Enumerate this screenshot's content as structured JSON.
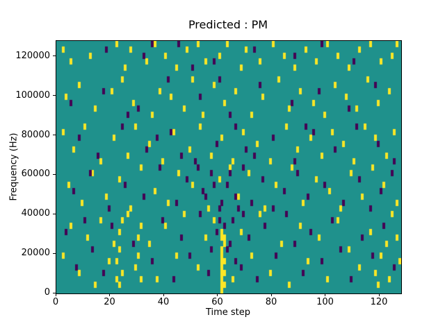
{
  "figure": {
    "background": "#ffffff"
  },
  "chart_data": {
    "type": "heatmap",
    "title": "Predicted : PM",
    "xlabel": "Time step",
    "ylabel": "Frequency (Hz)",
    "xlim": [
      0,
      128
    ],
    "ylim": [
      0,
      128000
    ],
    "x_ticks": [
      0,
      20,
      40,
      60,
      80,
      100,
      120
    ],
    "y_ticks": [
      0,
      20000,
      40000,
      60000,
      80000,
      100000,
      120000
    ],
    "grid": {
      "cols": 128,
      "rows": 43
    },
    "colormap": "viridis",
    "colors": {
      "background_value": "#1f918c",
      "high_value": "#fde725",
      "low_value": "#440154",
      "axes": "#000000"
    },
    "legend": "none",
    "cells": {
      "yellow": [
        [
          2,
          41
        ],
        [
          5,
          39
        ],
        [
          12,
          40
        ],
        [
          22,
          42
        ],
        [
          25,
          38
        ],
        [
          27,
          41
        ],
        [
          33,
          39
        ],
        [
          36,
          42
        ],
        [
          40,
          40
        ],
        [
          44,
          38
        ],
        [
          48,
          41
        ],
        [
          52,
          42
        ],
        [
          55,
          39
        ],
        [
          60,
          40
        ],
        [
          63,
          42
        ],
        [
          68,
          38
        ],
        [
          70,
          41
        ],
        [
          75,
          39
        ],
        [
          80,
          42
        ],
        [
          84,
          40
        ],
        [
          88,
          38
        ],
        [
          92,
          41
        ],
        [
          96,
          39
        ],
        [
          100,
          42
        ],
        [
          104,
          40
        ],
        [
          108,
          38
        ],
        [
          112,
          41
        ],
        [
          116,
          42
        ],
        [
          120,
          39
        ],
        [
          124,
          40
        ],
        [
          126,
          42
        ],
        [
          3,
          33
        ],
        [
          8,
          35
        ],
        [
          14,
          31
        ],
        [
          20,
          34
        ],
        [
          24,
          36
        ],
        [
          28,
          32
        ],
        [
          35,
          30
        ],
        [
          38,
          34
        ],
        [
          42,
          33
        ],
        [
          47,
          31
        ],
        [
          50,
          36
        ],
        [
          54,
          30
        ],
        [
          58,
          35
        ],
        [
          62,
          32
        ],
        [
          66,
          34
        ],
        [
          72,
          30
        ],
        [
          76,
          33
        ],
        [
          82,
          36
        ],
        [
          86,
          31
        ],
        [
          90,
          34
        ],
        [
          95,
          32
        ],
        [
          99,
          30
        ],
        [
          103,
          35
        ],
        [
          107,
          33
        ],
        [
          111,
          31
        ],
        [
          115,
          36
        ],
        [
          119,
          32
        ],
        [
          123,
          34
        ],
        [
          2,
          27
        ],
        [
          6,
          24
        ],
        [
          10,
          28
        ],
        [
          16,
          22
        ],
        [
          21,
          26
        ],
        [
          26,
          23
        ],
        [
          29,
          28
        ],
        [
          34,
          25
        ],
        [
          39,
          22
        ],
        [
          43,
          27
        ],
        [
          49,
          24
        ],
        [
          53,
          28
        ],
        [
          57,
          23
        ],
        [
          61,
          26
        ],
        [
          65,
          22
        ],
        [
          69,
          27
        ],
        [
          74,
          25
        ],
        [
          79,
          22
        ],
        [
          85,
          28
        ],
        [
          89,
          24
        ],
        [
          94,
          26
        ],
        [
          98,
          23
        ],
        [
          102,
          27
        ],
        [
          106,
          25
        ],
        [
          110,
          22
        ],
        [
          114,
          28
        ],
        [
          118,
          26
        ],
        [
          122,
          23
        ],
        [
          125,
          27
        ],
        [
          4,
          18
        ],
        [
          9,
          15
        ],
        [
          13,
          20
        ],
        [
          18,
          16
        ],
        [
          23,
          19
        ],
        [
          27,
          14
        ],
        [
          31,
          21
        ],
        [
          36,
          17
        ],
        [
          41,
          15
        ],
        [
          45,
          20
        ],
        [
          50,
          18
        ],
        [
          56,
          14
        ],
        [
          60,
          19
        ],
        [
          64,
          21
        ],
        [
          67,
          16
        ],
        [
          71,
          20
        ],
        [
          77,
          14
        ],
        [
          81,
          18
        ],
        [
          87,
          21
        ],
        [
          91,
          15
        ],
        [
          96,
          19
        ],
        [
          101,
          17
        ],
        [
          105,
          14
        ],
        [
          109,
          20
        ],
        [
          113,
          16
        ],
        [
          117,
          21
        ],
        [
          121,
          18
        ],
        [
          126,
          15
        ],
        [
          22,
          2
        ],
        [
          22,
          5
        ],
        [
          23,
          1
        ],
        [
          23,
          7
        ],
        [
          23,
          10
        ],
        [
          24,
          3
        ],
        [
          24,
          12
        ],
        [
          21,
          8
        ],
        [
          29,
          4
        ],
        [
          30,
          6
        ],
        [
          30,
          9
        ],
        [
          31,
          2
        ],
        [
          31,
          11
        ],
        [
          61,
          0
        ],
        [
          61,
          1
        ],
        [
          61,
          2
        ],
        [
          61,
          3
        ],
        [
          61,
          4
        ],
        [
          61,
          5
        ],
        [
          61,
          6
        ],
        [
          61,
          7
        ],
        [
          61,
          9
        ],
        [
          61,
          10
        ],
        [
          62,
          1
        ],
        [
          62,
          3
        ],
        [
          62,
          5
        ],
        [
          62,
          8
        ],
        [
          62,
          9
        ],
        [
          2,
          6
        ],
        [
          5,
          11
        ],
        [
          8,
          3
        ],
        [
          11,
          9
        ],
        [
          14,
          1
        ],
        [
          16,
          12
        ],
        [
          19,
          5
        ],
        [
          26,
          13
        ],
        [
          34,
          8
        ],
        [
          37,
          2
        ],
        [
          40,
          11
        ],
        [
          44,
          6
        ],
        [
          47,
          13
        ],
        [
          52,
          4
        ],
        [
          55,
          9
        ],
        [
          58,
          12
        ],
        [
          65,
          2
        ],
        [
          68,
          10
        ],
        [
          72,
          6
        ],
        [
          75,
          13
        ],
        [
          79,
          3
        ],
        [
          83,
          8
        ],
        [
          86,
          1
        ],
        [
          90,
          11
        ],
        [
          93,
          5
        ],
        [
          97,
          9
        ],
        [
          100,
          2
        ],
        [
          104,
          12
        ],
        [
          108,
          7
        ],
        [
          112,
          4
        ],
        [
          116,
          10
        ],
        [
          119,
          1
        ],
        [
          122,
          8
        ],
        [
          124,
          13
        ],
        [
          127,
          5
        ],
        [
          118,
          3
        ],
        [
          120,
          6
        ],
        [
          123,
          2
        ],
        [
          126,
          9
        ]
      ],
      "purple": [
        [
          18,
          41
        ],
        [
          32,
          40
        ],
        [
          45,
          42
        ],
        [
          58,
          39
        ],
        [
          73,
          41
        ],
        [
          88,
          40
        ],
        [
          98,
          42
        ],
        [
          110,
          39
        ],
        [
          35,
          42
        ],
        [
          50,
          38
        ],
        [
          5,
          32
        ],
        [
          17,
          34
        ],
        [
          30,
          31
        ],
        [
          41,
          36
        ],
        [
          53,
          33
        ],
        [
          64,
          30
        ],
        [
          75,
          35
        ],
        [
          87,
          32
        ],
        [
          97,
          34
        ],
        [
          108,
          31
        ],
        [
          118,
          35
        ],
        [
          26,
          30
        ],
        [
          60,
          36
        ],
        [
          8,
          26
        ],
        [
          15,
          23
        ],
        [
          24,
          28
        ],
        [
          33,
          24
        ],
        [
          42,
          27
        ],
        [
          51,
          22
        ],
        [
          59,
          25
        ],
        [
          66,
          28
        ],
        [
          73,
          23
        ],
        [
          80,
          26
        ],
        [
          88,
          22
        ],
        [
          95,
          27
        ],
        [
          103,
          24
        ],
        [
          111,
          28
        ],
        [
          119,
          25
        ],
        [
          125,
          22
        ],
        [
          37,
          26
        ],
        [
          46,
          23
        ],
        [
          70,
          24
        ],
        [
          92,
          28
        ],
        [
          6,
          17
        ],
        [
          12,
          20
        ],
        [
          19,
          14
        ],
        [
          25,
          18
        ],
        [
          32,
          16
        ],
        [
          38,
          21
        ],
        [
          44,
          15
        ],
        [
          48,
          19
        ],
        [
          54,
          17
        ],
        [
          57,
          20
        ],
        [
          60,
          14
        ],
        [
          63,
          18
        ],
        [
          66,
          16
        ],
        [
          69,
          21
        ],
        [
          72,
          15
        ],
        [
          76,
          19
        ],
        [
          80,
          14
        ],
        [
          84,
          17
        ],
        [
          89,
          20
        ],
        [
          93,
          16
        ],
        [
          99,
          18
        ],
        [
          106,
          15
        ],
        [
          112,
          19
        ],
        [
          116,
          14
        ],
        [
          120,
          17
        ],
        [
          124,
          20
        ],
        [
          61,
          15
        ],
        [
          64,
          20
        ],
        [
          67,
          14
        ],
        [
          55,
          16
        ],
        [
          58,
          18
        ],
        [
          52,
          21
        ],
        [
          3,
          10
        ],
        [
          7,
          4
        ],
        [
          10,
          12
        ],
        [
          13,
          7
        ],
        [
          17,
          3
        ],
        [
          20,
          11
        ],
        [
          28,
          8
        ],
        [
          35,
          5
        ],
        [
          39,
          12
        ],
        [
          43,
          2
        ],
        [
          46,
          9
        ],
        [
          49,
          6
        ],
        [
          53,
          13
        ],
        [
          56,
          3
        ],
        [
          59,
          10
        ],
        [
          63,
          7
        ],
        [
          65,
          12
        ],
        [
          68,
          4
        ],
        [
          71,
          9
        ],
        [
          74,
          2
        ],
        [
          77,
          11
        ],
        [
          81,
          6
        ],
        [
          85,
          13
        ],
        [
          88,
          8
        ],
        [
          91,
          3
        ],
        [
          94,
          10
        ],
        [
          98,
          5
        ],
        [
          102,
          12
        ],
        [
          105,
          7
        ],
        [
          109,
          2
        ],
        [
          113,
          9
        ],
        [
          117,
          6
        ],
        [
          121,
          11
        ],
        [
          125,
          4
        ],
        [
          60,
          12
        ],
        [
          62,
          11
        ],
        [
          64,
          8
        ],
        [
          66,
          5
        ],
        [
          69,
          13
        ],
        [
          57,
          7
        ]
      ]
    }
  }
}
